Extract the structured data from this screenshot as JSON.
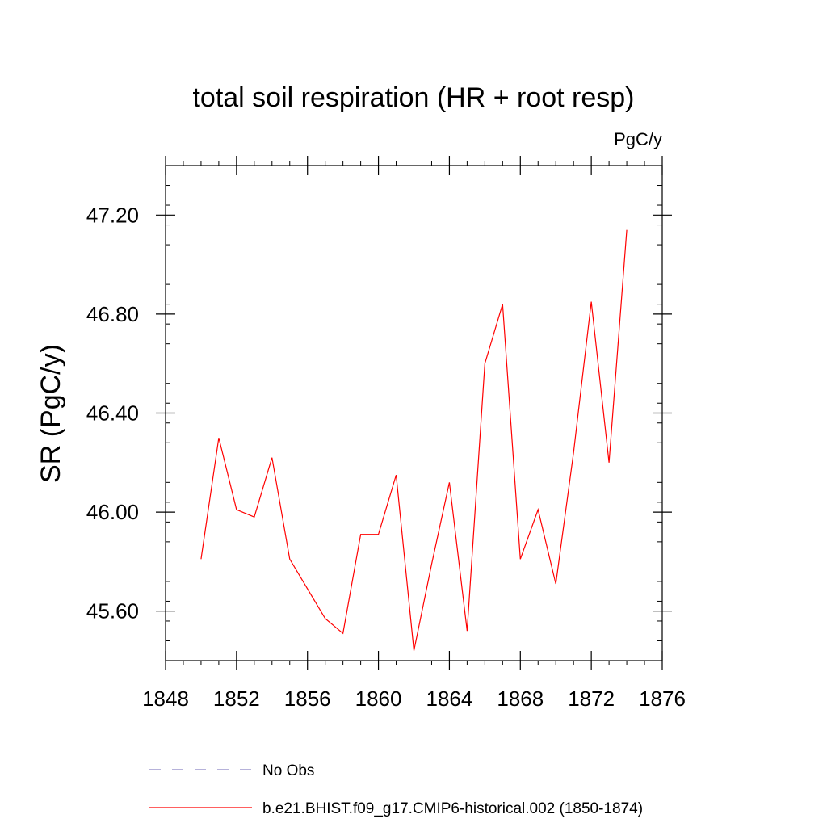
{
  "chart_data": {
    "type": "line",
    "title": "total soil respiration (HR + root resp)",
    "units": "PgC/y",
    "ylabel": "SR  (PgC/y)",
    "xlabel": "",
    "xlim": [
      1848,
      1876
    ],
    "ylim": [
      45.4,
      47.4
    ],
    "x_ticks": [
      1848,
      1852,
      1856,
      1860,
      1864,
      1868,
      1872,
      1876
    ],
    "x_tick_labels": [
      "1848",
      "1852",
      "1856",
      "1860",
      "1864",
      "1868",
      "1872",
      "1876"
    ],
    "y_ticks": [
      45.6,
      46.0,
      46.4,
      46.8,
      47.2
    ],
    "y_tick_labels": [
      "45.60",
      "46.00",
      "46.40",
      "46.80",
      "47.20"
    ],
    "grid": false,
    "legend_position": "bottom",
    "series": [
      {
        "name": "No Obs",
        "color": "#8b84c4",
        "style": "dashed",
        "x": [],
        "values": []
      },
      {
        "name": "b.e21.BHIST.f09_g17.CMIP6-historical.002 (1850-1874)",
        "color": "#ff0000",
        "style": "solid",
        "x": [
          1850,
          1851,
          1852,
          1853,
          1854,
          1855,
          1856,
          1857,
          1858,
          1859,
          1860,
          1861,
          1862,
          1863,
          1864,
          1865,
          1866,
          1867,
          1868,
          1869,
          1870,
          1871,
          1872,
          1873,
          1874
        ],
        "values": [
          45.81,
          46.3,
          46.01,
          45.98,
          46.22,
          45.81,
          45.69,
          45.57,
          45.51,
          45.91,
          45.91,
          46.15,
          45.44,
          45.79,
          46.12,
          45.52,
          46.6,
          46.84,
          45.81,
          46.01,
          45.71,
          46.24,
          46.85,
          46.2,
          47.14
        ]
      }
    ]
  }
}
